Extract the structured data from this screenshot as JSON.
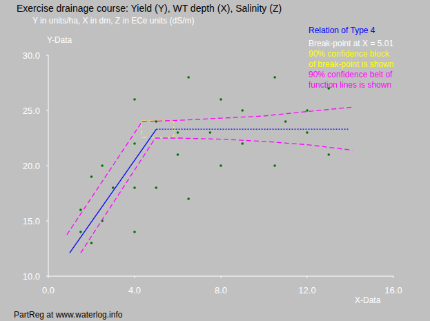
{
  "chart_data": {
    "type": "scatter",
    "title": "Exercise drainage course: Yield (Y), WT depth (X), Salinity (Z)",
    "subtitle": "Y in units/ha, X in dm, Z in ECe units (dS/m)",
    "x_label": "X-Data",
    "y_label": "Y-Data",
    "xlim": [
      0,
      16
    ],
    "ylim": [
      10,
      30
    ],
    "xticks": [
      {
        "value": 0,
        "label": "0.0"
      },
      {
        "value": 4,
        "label": "4.0"
      },
      {
        "value": 8,
        "label": "8.0"
      },
      {
        "value": 12,
        "label": "12.0"
      },
      {
        "value": 16,
        "label": "16.0"
      }
    ],
    "yticks": [
      {
        "value": 10,
        "label": "10.0"
      },
      {
        "value": 15,
        "label": "15.0"
      },
      {
        "value": 20,
        "label": "20.0"
      },
      {
        "value": 25,
        "label": "25.0"
      },
      {
        "value": 30,
        "label": "30.0"
      }
    ],
    "grid": false,
    "annotations": [
      {
        "text": "Relation of Type 4",
        "color": "#0000ff"
      },
      {
        "text": "Break-point at X =  5.01",
        "color": "#ffffff"
      },
      {
        "text": "90% confidence block",
        "color": "#ffff00"
      },
      {
        "text": "of break-point is shown",
        "color": "#ffff00"
      },
      {
        "text": "90% confidence belt of",
        "color": "#ff00ff"
      },
      {
        "text": "function lines is shown",
        "color": "#ff00ff"
      },
      {
        "text": "PartReg at www.waterlog.info",
        "color": "#000000"
      }
    ],
    "confidence_block": {
      "x": [
        4.32,
        5.82
      ],
      "y": [
        22.56,
        24.06
      ],
      "color": "#ffff00",
      "line_style": "dashed"
    },
    "series": [
      {
        "type": "scatter",
        "color": "#007000",
        "marker": "circle",
        "x": [
          1.5,
          1.5,
          2.0,
          2.0,
          2.5,
          2.5,
          3.0,
          4.0,
          4.0,
          4.0,
          4.0,
          5.0,
          5.0,
          6.0,
          6.0,
          6.5,
          6.5,
          7.5,
          8.0,
          8.0,
          9.0,
          9.0,
          10.5,
          10.5,
          11.0,
          12.0,
          12.0,
          13.0,
          13.0
        ],
        "values": [
          16,
          14,
          19,
          13,
          20,
          15,
          18,
          26,
          22,
          18,
          14,
          24,
          18,
          21,
          23,
          28,
          17,
          23,
          26,
          20,
          25,
          22,
          28,
          20,
          24,
          25,
          23,
          27,
          21
        ]
      },
      {
        "type": "line",
        "color": "#0000ff",
        "line_style": "solid",
        "x": [
          0.99,
          5.01
        ],
        "values": [
          12.1,
          23.3
        ]
      },
      {
        "type": "line",
        "color": "#0000ff",
        "line_style": "dotted",
        "x": [
          5.01,
          13.9
        ],
        "values": [
          23.3,
          23.3
        ]
      },
      {
        "type": "line",
        "color": "#ff00ff",
        "line_style": "dashed",
        "x": [
          0.86,
          4.35
        ],
        "values": [
          13.75,
          24.0
        ]
      },
      {
        "type": "line",
        "color": "#ff00ff",
        "line_style": "dashed",
        "x": [
          1.5,
          4.96
        ],
        "values": [
          12.1,
          22.5
        ]
      },
      {
        "type": "line",
        "color": "#ff00ff",
        "line_style": "dashed",
        "x": [
          4.35,
          6,
          8,
          10,
          12,
          14.1
        ],
        "values": [
          24.0,
          24.1,
          24.3,
          24.5,
          24.9,
          25.3
        ]
      },
      {
        "type": "line",
        "color": "#ff00ff",
        "line_style": "dashed",
        "x": [
          4.96,
          6,
          8,
          10,
          12,
          14.1
        ],
        "values": [
          22.5,
          22.5,
          22.4,
          22.2,
          21.9,
          21.4
        ]
      }
    ]
  }
}
